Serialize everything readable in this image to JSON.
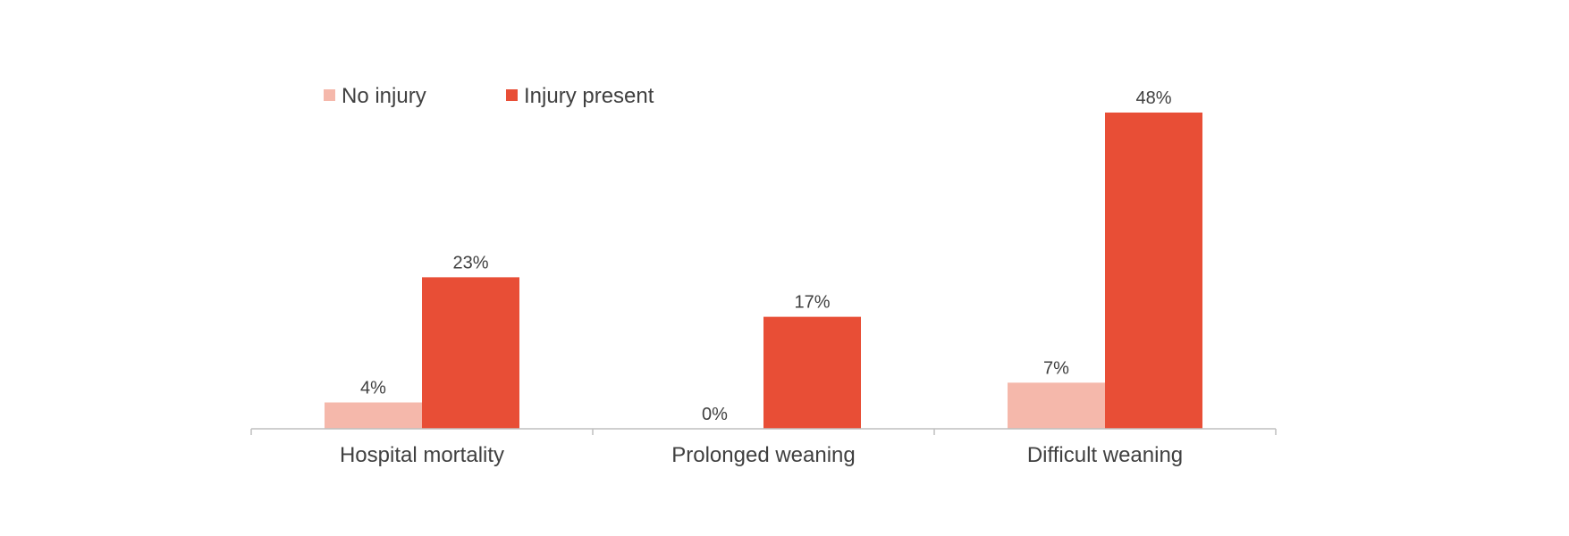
{
  "chart_data": {
    "type": "bar",
    "categories": [
      "Hospital mortality",
      "Prolonged weaning",
      "Difficult weaning"
    ],
    "series": [
      {
        "name": "No injury",
        "values": [
          4,
          0,
          7
        ],
        "labels": [
          "4%",
          "0%",
          "7%"
        ],
        "color": "#f5b8ab"
      },
      {
        "name": "Injury present",
        "values": [
          23,
          17,
          48
        ],
        "labels": [
          "23%",
          "17%",
          "48%"
        ],
        "color": "#e84e36"
      }
    ],
    "title": "",
    "xlabel": "",
    "ylabel": "",
    "ylim": [
      0,
      48
    ],
    "grid": false,
    "legend_position": "top-left",
    "axis_color": "#bfbfbf"
  }
}
